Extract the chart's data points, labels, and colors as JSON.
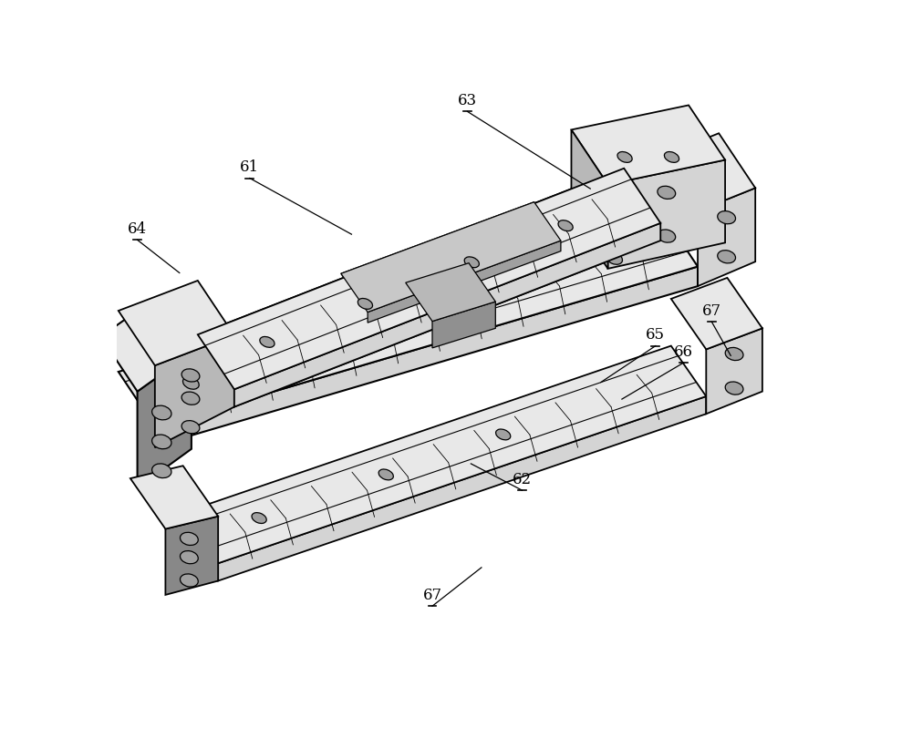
{
  "background_color": "#ffffff",
  "figure_width": 10.0,
  "figure_height": 8.21,
  "gray_face": "#d4d4d4",
  "gray_top": "#e8e8e8",
  "gray_dark_face": "#a0a0a0",
  "gray_end": "#b8b8b8",
  "black": "#000000",
  "white": "#ffffff",
  "label_fontsize": 12,
  "lw_main": 1.3,
  "lw_thin": 0.8
}
